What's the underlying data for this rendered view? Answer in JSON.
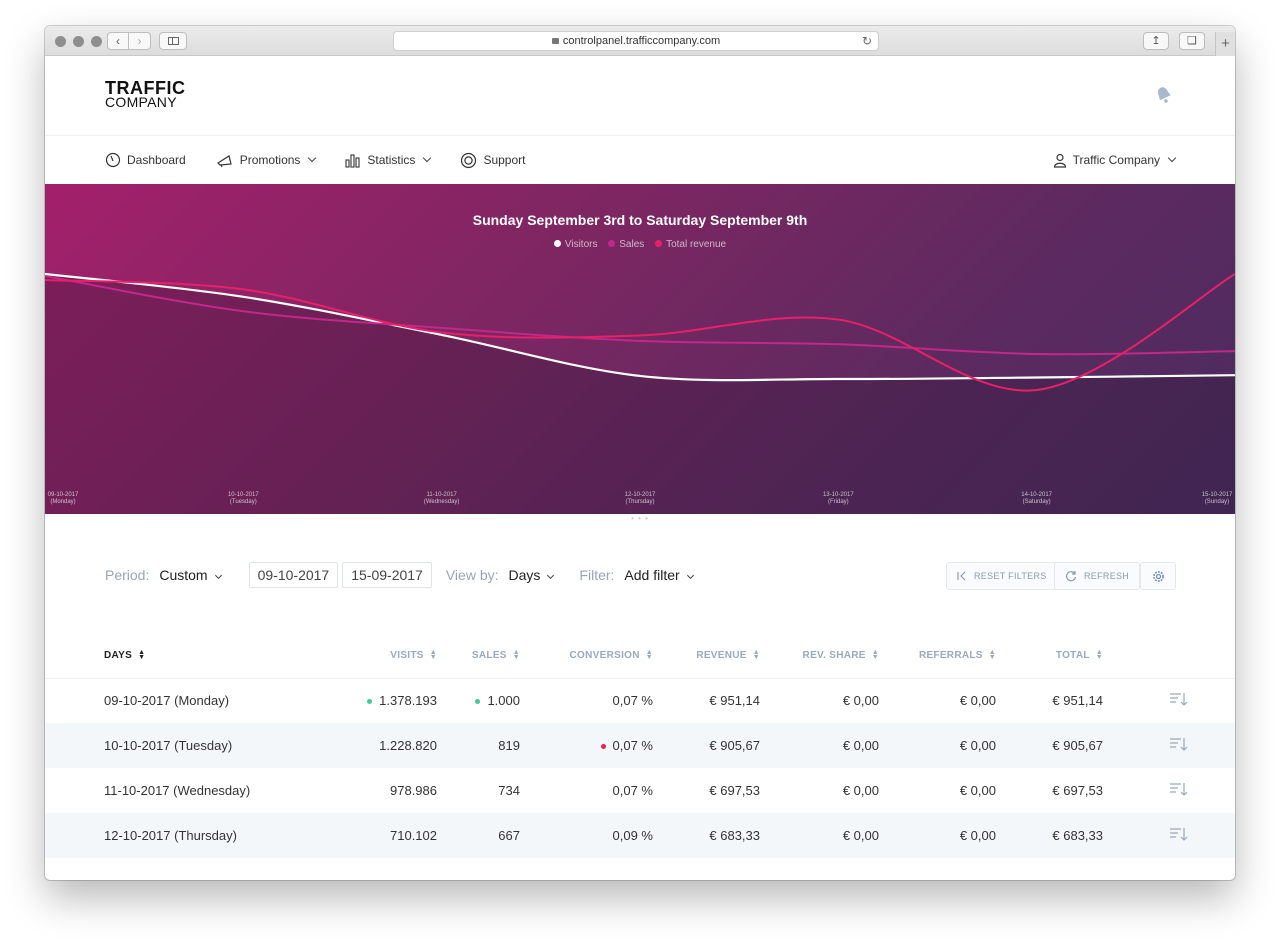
{
  "browser": {
    "url": "controlpanel.trafficcompany.com"
  },
  "logo": {
    "line1": "TRAFFIC",
    "line2": "COMPANY"
  },
  "nav": {
    "items": [
      {
        "label": "Dashboard",
        "icon": "dashboard-icon"
      },
      {
        "label": "Promotions",
        "icon": "megaphone-icon"
      },
      {
        "label": "Statistics",
        "icon": "bar-chart-icon"
      },
      {
        "label": "Support",
        "icon": "lifebuoy-icon"
      }
    ],
    "user": "Traffic Company"
  },
  "chart_data": {
    "type": "line",
    "title": "Sunday September 3rd to Saturday September 9th",
    "x": [
      "09-10-2017\n(Monday)",
      "10-10-2017\n(Tuesday)",
      "11-10-2017\n(Wednesday)",
      "12-10-2017\n(Thursday)",
      "13-10-2017\n(Friday)",
      "14-10-2017\n(Saturday)",
      "15-10-2017\n(Sunday)"
    ],
    "series": [
      {
        "name": "Visitors",
        "color": "#ffffff",
        "values": [
          1378193,
          1228820,
          978986,
          710102,
          690000,
          700000,
          715000
        ]
      },
      {
        "name": "Sales",
        "color": "#c2278a",
        "values": [
          1000,
          819,
          734,
          667,
          650,
          600,
          615
        ]
      },
      {
        "name": "Total revenue",
        "color": "#e8206a",
        "values": [
          951.14,
          905.67,
          697.53,
          683.33,
          760.0,
          420.0,
          980.0
        ]
      }
    ],
    "legend": "top-center",
    "grid": false,
    "colors": {
      "background_start": "#a3206b",
      "background_end": "#4a2c5f"
    }
  },
  "filters": {
    "period_label": "Period:",
    "period_value": "Custom",
    "date_from": "09-10-2017",
    "date_to": "15-09-2017",
    "viewby_label": "View by:",
    "viewby_value": "Days",
    "filter_label": "Filter:",
    "filter_value": "Add filter",
    "reset": "RESET FILTERS",
    "refresh": "REFRESH"
  },
  "table": {
    "headers": [
      "DAYS",
      "VISITS",
      "SALES",
      "CONVERSION",
      "REVENUE",
      "REV. SHARE",
      "REFERRALS",
      "TOTAL"
    ],
    "rows": [
      {
        "day": "09-10-2017 (Monday)",
        "visits": "1.378.193",
        "sales": "1.000",
        "conversion": "0,07 %",
        "revenue": "€ 951,14",
        "revshare": "€ 0,00",
        "referrals": "€ 0,00",
        "total": "€ 951,14",
        "visits_dot": "#3fc99a",
        "sales_dot": "#3fc99a",
        "conv_dot": ""
      },
      {
        "day": "10-10-2017 (Tuesday)",
        "visits": "1.228.820",
        "sales": "819",
        "conversion": "0,07 %",
        "revenue": "€ 905,67",
        "revshare": "€ 0,00",
        "referrals": "€ 0,00",
        "total": "€ 905,67",
        "visits_dot": "",
        "sales_dot": "",
        "conv_dot": "#e8204f"
      },
      {
        "day": "11-10-2017 (Wednesday)",
        "visits": "978.986",
        "sales": "734",
        "conversion": "0,07 %",
        "revenue": "€ 697,53",
        "revshare": "€ 0,00",
        "referrals": "€ 0,00",
        "total": "€ 697,53",
        "visits_dot": "",
        "sales_dot": "",
        "conv_dot": ""
      },
      {
        "day": "12-10-2017 (Thursday)",
        "visits": "710.102",
        "sales": "667",
        "conversion": "0,09 %",
        "revenue": "€ 683,33",
        "revshare": "€ 0,00",
        "referrals": "€ 0,00",
        "total": "€ 683,33",
        "visits_dot": "",
        "sales_dot": "",
        "conv_dot": ""
      }
    ]
  }
}
